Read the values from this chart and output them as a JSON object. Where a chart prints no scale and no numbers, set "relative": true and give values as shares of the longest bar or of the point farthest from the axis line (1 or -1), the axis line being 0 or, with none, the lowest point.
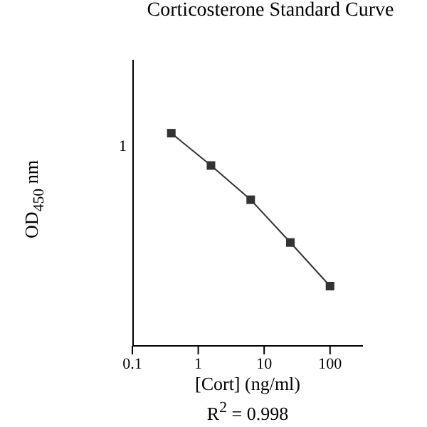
{
  "chart_data": {
    "type": "line",
    "title": "Corticosterone Standard Curve",
    "xlabel": "[Cort] (ng/ml)",
    "ylabel": "OD$_{450}$ nm",
    "annotations": [
      "1",
      "R$^{2}$ = 0.998"
    ],
    "relative": true,
    "log": "x",
    "x": [
      0.39,
      1.56,
      6.25,
      25,
      100
    ],
    "series": [
      {
        "color": "#333333",
        "values": [
          1,
          0.848,
          0.687,
          0.486,
          0.281
        ]
      }
    ],
    "xlim": [
      0.1,
      316
    ],
    "xticks": [
      0.1,
      1,
      10,
      100
    ],
    "marker": "square",
    "line_style": "solid",
    "grid": false,
    "legend": false
  }
}
